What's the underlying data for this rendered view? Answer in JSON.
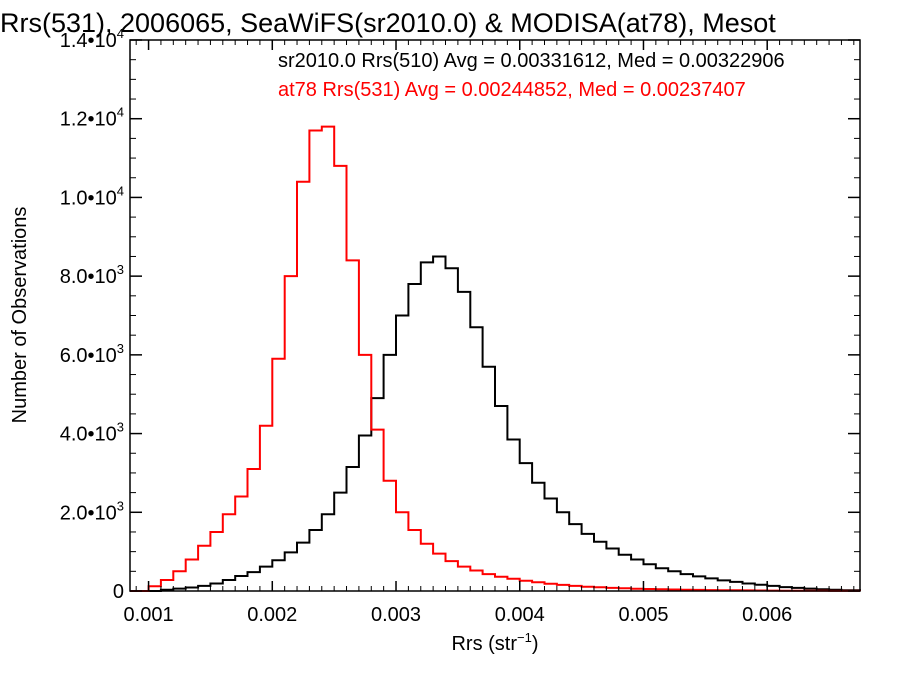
{
  "chart_data": {
    "type": "line",
    "title": "Rrs(531), 2006065, SeaWiFS(sr2010.0) & MODISA(at78), Mesot",
    "xlabel": "Rrs (str",
    "xlabel_sup": "−1",
    "xlabel_tail": ")",
    "ylabel": "Number of Observations",
    "xlim": [
      0.00085,
      0.00675
    ],
    "ylim": [
      0,
      14000
    ],
    "x_ticks": [
      {
        "value": 0.001,
        "label": "0.001"
      },
      {
        "value": 0.002,
        "label": "0.002"
      },
      {
        "value": 0.003,
        "label": "0.003"
      },
      {
        "value": 0.004,
        "label": "0.004"
      },
      {
        "value": 0.005,
        "label": "0.005"
      },
      {
        "value": 0.006,
        "label": "0.006"
      }
    ],
    "y_ticks": [
      {
        "value": 0,
        "mantissa": "0",
        "exp": ""
      },
      {
        "value": 2000,
        "mantissa": "2.0•10",
        "exp": "3"
      },
      {
        "value": 4000,
        "mantissa": "4.0•10",
        "exp": "3"
      },
      {
        "value": 6000,
        "mantissa": "6.0•10",
        "exp": "3"
      },
      {
        "value": 8000,
        "mantissa": "8.0•10",
        "exp": "3"
      },
      {
        "value": 10000,
        "mantissa": "1.0•10",
        "exp": "4"
      },
      {
        "value": 12000,
        "mantissa": "1.2•10",
        "exp": "4"
      },
      {
        "value": 14000,
        "mantissa": "1.4•10",
        "exp": "4"
      }
    ],
    "annotations": [
      {
        "text": "sr2010.0 Rrs(510) Avg = 0.00331612, Med = 0.00322906",
        "color": "#000000"
      },
      {
        "text": "at78 Rrs(531) Avg = 0.00244852, Med = 0.00237407",
        "color": "#ff0000"
      }
    ],
    "series": [
      {
        "color": "#000000",
        "x": [
          0.00085,
          0.001,
          0.0011,
          0.0012,
          0.0013,
          0.0014,
          0.0015,
          0.0016,
          0.0017,
          0.0018,
          0.0019,
          0.002,
          0.0021,
          0.0022,
          0.0023,
          0.0024,
          0.0025,
          0.0026,
          0.0027,
          0.0028,
          0.0029,
          0.003,
          0.0031,
          0.0032,
          0.0033,
          0.0034,
          0.0035,
          0.0036,
          0.0037,
          0.0038,
          0.0039,
          0.004,
          0.0041,
          0.0042,
          0.0043,
          0.0044,
          0.0045,
          0.0046,
          0.0047,
          0.0048,
          0.0049,
          0.005,
          0.0051,
          0.0052,
          0.0053,
          0.0054,
          0.0055,
          0.0056,
          0.0057,
          0.0058,
          0.0059,
          0.006,
          0.0061,
          0.0062,
          0.0063,
          0.0064,
          0.0065,
          0.0066,
          0.00675
        ],
        "y": [
          0,
          0,
          30,
          60,
          90,
          130,
          190,
          280,
          380,
          480,
          620,
          780,
          980,
          1230,
          1550,
          1950,
          2500,
          3150,
          3950,
          4900,
          6000,
          7000,
          7800,
          8350,
          8500,
          8200,
          7600,
          6700,
          5700,
          4700,
          3850,
          3250,
          2750,
          2350,
          2000,
          1700,
          1450,
          1250,
          1080,
          920,
          800,
          680,
          580,
          500,
          430,
          370,
          320,
          270,
          230,
          190,
          160,
          130,
          100,
          80,
          60,
          45,
          30,
          20,
          10
        ]
      },
      {
        "color": "#ff0000",
        "x": [
          0.00085,
          0.001,
          0.0011,
          0.0012,
          0.0013,
          0.0014,
          0.0015,
          0.0016,
          0.0017,
          0.0018,
          0.0019,
          0.002,
          0.0021,
          0.0022,
          0.0023,
          0.0024,
          0.0025,
          0.0026,
          0.0027,
          0.0028,
          0.0029,
          0.003,
          0.0031,
          0.0032,
          0.0033,
          0.0034,
          0.0035,
          0.0036,
          0.0037,
          0.0038,
          0.0039,
          0.004,
          0.0041,
          0.0042,
          0.0043,
          0.0044,
          0.0045,
          0.0046,
          0.0047,
          0.0048,
          0.0049,
          0.005,
          0.0051,
          0.0052,
          0.0053,
          0.0054,
          0.0055,
          0.0056,
          0.0057,
          0.0058,
          0.0059,
          0.006,
          0.0061,
          0.0062,
          0.0063,
          0.0064,
          0.0065,
          0.0066,
          0.00675
        ],
        "y": [
          0,
          120,
          280,
          500,
          800,
          1150,
          1500,
          1950,
          2400,
          3100,
          4200,
          5900,
          8000,
          10400,
          11700,
          11800,
          10800,
          8400,
          6000,
          4100,
          2800,
          2000,
          1550,
          1200,
          950,
          760,
          620,
          520,
          430,
          360,
          310,
          260,
          220,
          185,
          155,
          130,
          110,
          95,
          80,
          68,
          58,
          50,
          43,
          37,
          32,
          27,
          23,
          20,
          17,
          14,
          12,
          10,
          8,
          6,
          5,
          4,
          3,
          2,
          1
        ]
      }
    ],
    "grid": false,
    "legend": "none"
  }
}
